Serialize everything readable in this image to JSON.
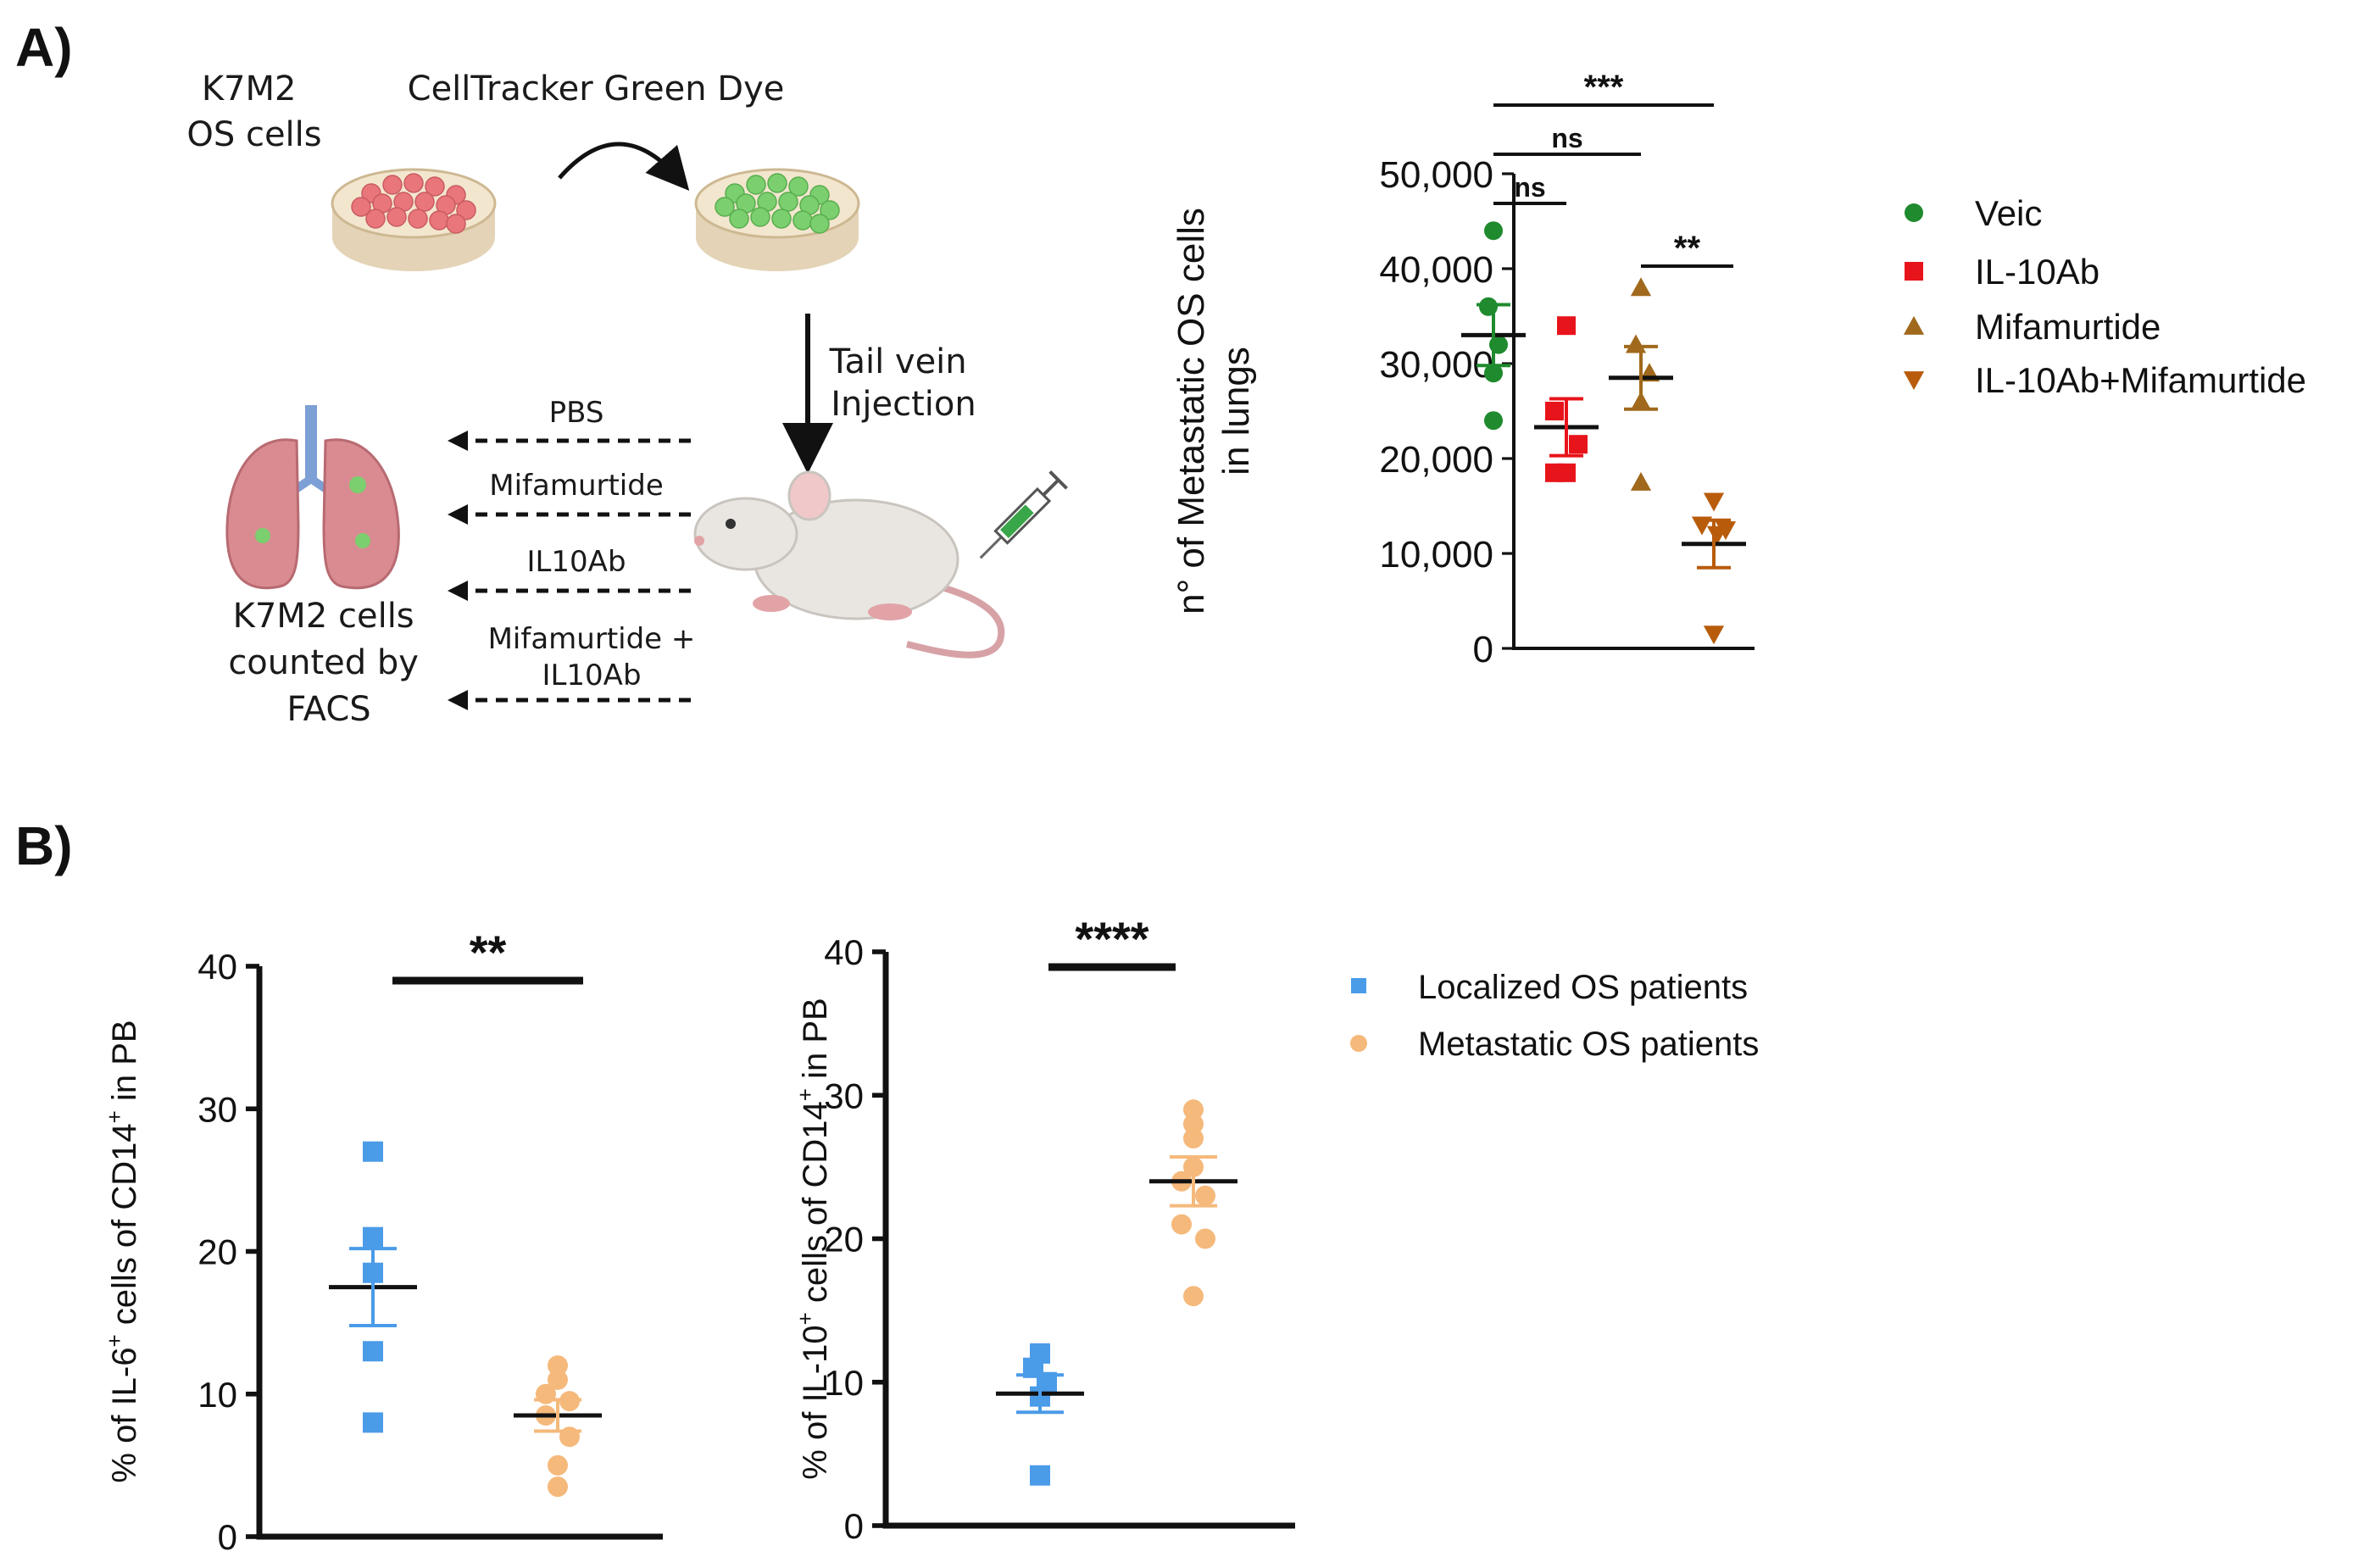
{
  "panels": {
    "a_label": "A)",
    "b_label": "B)"
  },
  "schematic": {
    "cell_line_lines": [
      "K7M2",
      "OS cells"
    ],
    "dye_label": "CellTracker Green Dye",
    "injection_lines": [
      "Tail vein",
      "Injection"
    ],
    "treatments": [
      "PBS",
      "Mifamurtide",
      "IL10Ab",
      "Mifamurtide +",
      "IL10Ab"
    ],
    "count_lines": [
      "K7M2 cells",
      "counted by",
      "FACS"
    ],
    "colors": {
      "dish": "#f3e6cf",
      "red_cells": "#e9767b",
      "green_cells": "#7bcf6f",
      "lung": "#d98b91",
      "mouse": "#e9e6e2"
    }
  },
  "chart_data": [
    {
      "type": "scatter",
      "panel": "A",
      "ylabel_lines": [
        "n° of Metastatic OS cells",
        "in lungs"
      ],
      "ylim": [
        0,
        50000
      ],
      "yticks": [
        0,
        10000,
        20000,
        30000,
        40000,
        50000
      ],
      "ytick_labels": [
        "0",
        "10,000",
        "20,000",
        "30,000",
        "40,000",
        "50,000"
      ],
      "legend_position": "right",
      "series": [
        {
          "name": "Veic",
          "marker": "circle",
          "color": "#1f8a2e",
          "values": [
            44000,
            36000,
            32000,
            29000,
            24000
          ],
          "mean": 33000,
          "sem": 3200
        },
        {
          "name": "IL-10Ab",
          "marker": "square",
          "color": "#e8141b",
          "values": [
            34000,
            25000,
            21500,
            18500,
            18500
          ],
          "mean": 23300,
          "sem": 3000
        },
        {
          "name": "Mifamurtide",
          "marker": "triangle-up",
          "color": "#a0691c",
          "values": [
            38000,
            32000,
            29000,
            26000,
            17500
          ],
          "mean": 28500,
          "sem": 3300
        },
        {
          "name": "IL-10Ab+Mifamurtide",
          "marker": "triangle-down",
          "color": "#b85c0c",
          "values": [
            15500,
            13000,
            12500,
            12000,
            1500
          ],
          "mean": 11000,
          "sem": 2500
        }
      ],
      "significance": [
        {
          "from": 0,
          "to": 3,
          "label": "***"
        },
        {
          "from": 0,
          "to": 2,
          "label": "ns"
        },
        {
          "from": 0,
          "to": 1,
          "label": "ns"
        },
        {
          "from": 2,
          "to": 3,
          "label": "**"
        }
      ]
    },
    {
      "type": "scatter",
      "panel": "B-left",
      "ylabel_parts": [
        "% of IL-6",
        "+",
        " cells of CD14",
        "+",
        " in PB"
      ],
      "ylim": [
        0,
        40
      ],
      "yticks": [
        0,
        10,
        20,
        30,
        40
      ],
      "ytick_labels": [
        "0",
        "10",
        "20",
        "30",
        "40"
      ],
      "series": [
        {
          "name": "Localized OS patients",
          "marker": "square",
          "color": "#4a9be8",
          "values": [
            27,
            21,
            18.5,
            13,
            8
          ],
          "mean": 17.5,
          "sem": 2.7
        },
        {
          "name": "Metastatic OS patients",
          "marker": "circle",
          "color": "#f5b97b",
          "values": [
            12,
            11,
            10,
            9.5,
            8.5,
            7,
            5,
            3.5
          ],
          "mean": 8.5,
          "sem": 1.1
        }
      ],
      "significance": [
        {
          "from": 0,
          "to": 1,
          "label": "**"
        }
      ]
    },
    {
      "type": "scatter",
      "panel": "B-right",
      "ylabel_parts": [
        "% of IL-10",
        "+",
        " cells of CD14",
        "+",
        " in PB"
      ],
      "ylim": [
        0,
        40
      ],
      "yticks": [
        0,
        10,
        20,
        30,
        40
      ],
      "ytick_labels": [
        "0",
        "10",
        "20",
        "30",
        "40"
      ],
      "series": [
        {
          "name": "Localized OS patients",
          "marker": "square",
          "color": "#4a9be8",
          "values": [
            12,
            11,
            10,
            9,
            3.5
          ],
          "mean": 9.2,
          "sem": 1.3
        },
        {
          "name": "Metastatic OS patients",
          "marker": "circle",
          "color": "#f5b97b",
          "values": [
            29,
            28,
            27,
            25,
            24,
            23,
            21,
            20,
            16
          ],
          "mean": 24,
          "sem": 1.7
        }
      ],
      "significance": [
        {
          "from": 0,
          "to": 1,
          "label": "****"
        }
      ]
    }
  ],
  "legend_b": {
    "items": [
      {
        "label": "Localized OS patients",
        "marker": "square",
        "color": "#4a9be8"
      },
      {
        "label": "Metastatic OS patients",
        "marker": "circle",
        "color": "#f5b97b"
      }
    ]
  }
}
